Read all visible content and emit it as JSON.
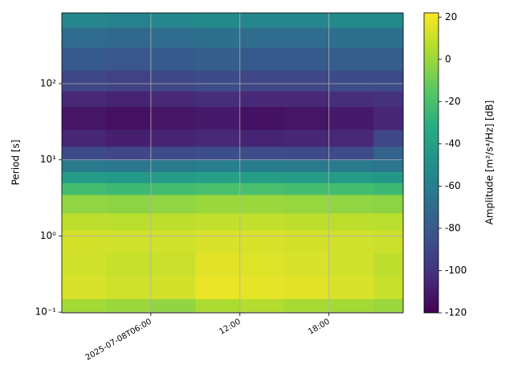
{
  "chart_data": {
    "type": "heatmap",
    "ylabel": "Period [s]",
    "colorbar_label": "Amplitude [m²/s⁴/Hz] [dB]",
    "colormap": "viridis",
    "yscale": "log",
    "grid": true,
    "xlim": [
      "2025-07-08T00:00",
      "2025-07-08T23:00"
    ],
    "xticks": [
      "2025-07-08T06:00",
      {
        "value": "2025-07-08T12:00",
        "label": "12:00"
      },
      {
        "value": "2025-07-08T18:00",
        "label": "18:00"
      }
    ],
    "ylim": [
      0.098,
      850
    ],
    "yticks": [
      {
        "value": 0.1,
        "label": "10⁻¹"
      },
      {
        "value": 1,
        "label": "10⁰"
      },
      {
        "value": 10,
        "label": "10¹"
      },
      {
        "value": 100,
        "label": "10²"
      }
    ],
    "clim": [
      -120,
      22
    ],
    "cticks": [
      20,
      0,
      -20,
      -40,
      -60,
      -80,
      -100,
      -120
    ],
    "x_edges": [
      "2025-07-08T00:00",
      "2025-07-08T03:00",
      "2025-07-08T06:00",
      "2025-07-08T09:00",
      "2025-07-08T12:00",
      "2025-07-08T15:00",
      "2025-07-08T18:00",
      "2025-07-08T21:00",
      "2025-07-08T23:00"
    ],
    "y_edges": [
      0.098,
      0.15,
      0.3,
      0.6,
      1.2,
      2,
      3.5,
      5,
      7,
      10,
      15,
      25,
      50,
      80,
      150,
      300,
      550,
      850
    ],
    "values": [
      [
        2,
        0,
        -2,
        4,
        6,
        3,
        2,
        0
      ],
      [
        14,
        12,
        13,
        18,
        17,
        16,
        14,
        10
      ],
      [
        12,
        10,
        11,
        16,
        15,
        14,
        12,
        8
      ],
      [
        13,
        12,
        12,
        14,
        14,
        13,
        12,
        11
      ],
      [
        8,
        7,
        8,
        9,
        9,
        8,
        8,
        7
      ],
      [
        -2,
        -3,
        -2,
        0,
        0,
        -1,
        -2,
        -3
      ],
      [
        -22,
        -24,
        -22,
        -20,
        -20,
        -22,
        -22,
        -24
      ],
      [
        -42,
        -44,
        -42,
        -40,
        -41,
        -42,
        -42,
        -45
      ],
      [
        -62,
        -64,
        -62,
        -60,
        -61,
        -62,
        -62,
        -65
      ],
      [
        -88,
        -90,
        -88,
        -86,
        -87,
        -88,
        -88,
        -75
      ],
      [
        -105,
        -108,
        -106,
        -104,
        -106,
        -105,
        -104,
        -90
      ],
      [
        -112,
        -114,
        -112,
        -110,
        -113,
        -112,
        -110,
        -105
      ],
      [
        -104,
        -106,
        -104,
        -102,
        -104,
        -104,
        -102,
        -100
      ],
      [
        -90,
        -92,
        -90,
        -88,
        -90,
        -90,
        -88,
        -88
      ],
      [
        -80,
        -82,
        -80,
        -78,
        -80,
        -80,
        -78,
        -78
      ],
      [
        -70,
        -72,
        -70,
        -68,
        -70,
        -70,
        -68,
        -68
      ],
      [
        -55,
        -57,
        -55,
        -53,
        -55,
        -55,
        -53,
        -53
      ]
    ]
  }
}
